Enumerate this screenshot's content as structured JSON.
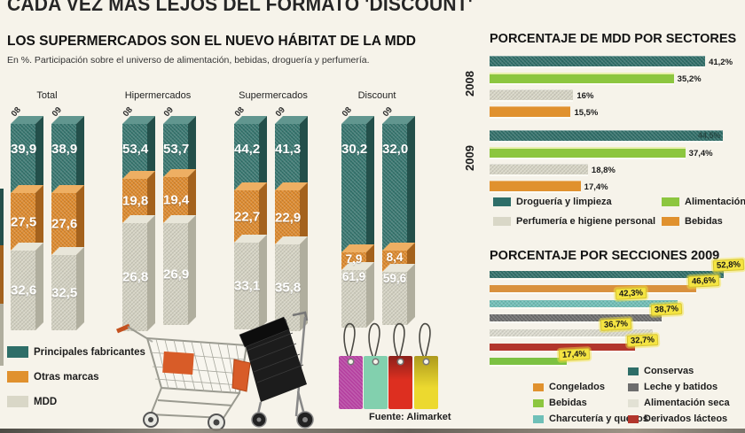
{
  "main_title": "CADA VEZ MÁS LEJOS DEL FORMATO 'DISCOUNT'",
  "source": "Fuente: Alimarket",
  "left_chart": {
    "title": "LOS SUPERMERCADOS SON EL NUEVO HÁBITAT DE LA MDD",
    "subtitle": "En %. Participación sobre el universo de alimentación, bebidas, droguería y perfumería.",
    "group_labels": [
      "Total",
      "Hipermercados",
      "Supermercados",
      "Discount"
    ],
    "legend": {
      "pf": "Principales fabricantes",
      "om": "Otras marcas",
      "mdd": "MDD"
    },
    "bars": {
      "t08": {
        "year": "08",
        "pf": "39,9",
        "om": "27,5",
        "mdd": "32,6"
      },
      "t09": {
        "year": "09",
        "pf": "38,9",
        "om": "27,6",
        "mdd": "32,5"
      },
      "h08": {
        "year": "08",
        "pf": "53,4",
        "om": "19,8",
        "mdd": "26,8"
      },
      "h09": {
        "year": "09",
        "pf": "53,7",
        "om": "19,4",
        "mdd": "26,9"
      },
      "s08": {
        "year": "08",
        "pf": "44,2",
        "om": "22,7",
        "mdd": "33,1"
      },
      "s09": {
        "year": "09",
        "pf": "41,3",
        "om": "22,9",
        "mdd": "35,8"
      },
      "d08": {
        "year": "08",
        "pf": "30,2",
        "om": "7,9",
        "mdd": "61,9"
      },
      "d09": {
        "year": "09",
        "pf": "32,0",
        "om": "8,4",
        "mdd": "59,6"
      }
    }
  },
  "sectores": {
    "title": "PORCENTAJE DE MDD POR SECTORES",
    "year_2008": "2008",
    "year_2009": "2009",
    "y2008": {
      "drogueria": {
        "pct": 41.2,
        "label": "41,2%"
      },
      "alimentacion": {
        "pct": 35.2,
        "label": "35,2%"
      },
      "perfumeria": {
        "pct": 16,
        "label": "16%"
      },
      "bebidas": {
        "pct": 15.5,
        "label": "15,5%"
      }
    },
    "y2009": {
      "drogueria": {
        "pct": 44.5,
        "label": "44,5%"
      },
      "alimentacion": {
        "pct": 37.4,
        "label": "37,4%"
      },
      "perfumeria": {
        "pct": 18.8,
        "label": "18,8%"
      },
      "bebidas": {
        "pct": 17.4,
        "label": "17,4%"
      }
    },
    "legend": {
      "drogueria": "Droguería y limpieza",
      "perfumeria": "Perfumería e higiene personal",
      "alimentacion": "Alimentación",
      "bebidas": "Bebidas"
    }
  },
  "secciones": {
    "title": "PORCENTAJE POR SECCIONES 2009",
    "rows": {
      "conservas": {
        "pct": 52.8,
        "label": "52,8%"
      },
      "congelados": {
        "pct": 46.6,
        "label": "46,6%"
      },
      "charcuteria": {
        "pct": 42.3,
        "label": "42,3%"
      },
      "leche": {
        "pct": 38.7,
        "label": "38,7%"
      },
      "alimentacion_seca": {
        "pct": 36.7,
        "label": "36,7%"
      },
      "derivados": {
        "pct": 32.7,
        "label": "32,7%"
      },
      "bebidas": {
        "pct": 17.4,
        "label": "17,4%"
      }
    },
    "legend": {
      "congelados": "Congelados",
      "bebidas": "Bebidas",
      "charcuteria": "Charcutería y quesos",
      "conservas": "Conservas",
      "leche": "Leche y batidos",
      "alimentacion_seca": "Alimentación seca",
      "derivados": "Derivados lácteos"
    }
  },
  "chart_data": [
    {
      "type": "bar",
      "stacked": true,
      "title": "LOS SUPERMERCADOS SON EL NUEVO HÁBITAT DE LA MDD",
      "subtitle": "En %. Participación sobre el universo de alimentación, bebidas, droguería y perfumería.",
      "unit": "%",
      "categories": [
        "Total 2008",
        "Total 2009",
        "Hipermercados 2008",
        "Hipermercados 2009",
        "Supermercados 2008",
        "Supermercados 2009",
        "Discount 2008",
        "Discount 2009"
      ],
      "series": [
        {
          "name": "Principales fabricantes",
          "color": "#36766f",
          "values": [
            39.9,
            38.9,
            53.4,
            53.7,
            44.2,
            41.3,
            30.2,
            32.0
          ]
        },
        {
          "name": "Otras marcas",
          "color": "#e08a2b",
          "values": [
            27.5,
            27.6,
            19.8,
            19.4,
            22.7,
            22.9,
            7.9,
            8.4
          ]
        },
        {
          "name": "MDD",
          "color": "#d6d4c4",
          "values": [
            32.6,
            32.5,
            26.8,
            26.9,
            33.1,
            35.8,
            61.9,
            59.6
          ]
        }
      ]
    },
    {
      "type": "bar",
      "orientation": "horizontal",
      "title": "PORCENTAJE DE MDD POR SECTORES",
      "categories": [
        "Droguería y limpieza",
        "Alimentación",
        "Perfumería e higiene personal",
        "Bebidas"
      ],
      "series": [
        {
          "name": "2008",
          "values": [
            41.2,
            35.2,
            16,
            15.5
          ]
        },
        {
          "name": "2009",
          "values": [
            44.5,
            37.4,
            18.8,
            17.4
          ]
        }
      ],
      "xlim": [
        0,
        50
      ],
      "colors": [
        "#2e6e68",
        "#8cc63f",
        "#d9d7c7",
        "#e0912e"
      ]
    },
    {
      "type": "bar",
      "orientation": "horizontal",
      "title": "PORCENTAJE POR SECCIONES 2009",
      "categories": [
        "Conservas",
        "Congelados",
        "Charcutería y quesos",
        "Leche y batidos",
        "Alimentación seca",
        "Derivados lácteos",
        "Bebidas"
      ],
      "values": [
        52.8,
        46.6,
        42.3,
        38.7,
        36.7,
        32.7,
        17.4
      ],
      "colors": [
        "#2e6e68",
        "#d9913d",
        "#6fc0b8",
        "#6d6d6d",
        "#deddd0",
        "#b2362c",
        "#7cc142"
      ],
      "xlim": [
        0,
        55
      ]
    }
  ]
}
